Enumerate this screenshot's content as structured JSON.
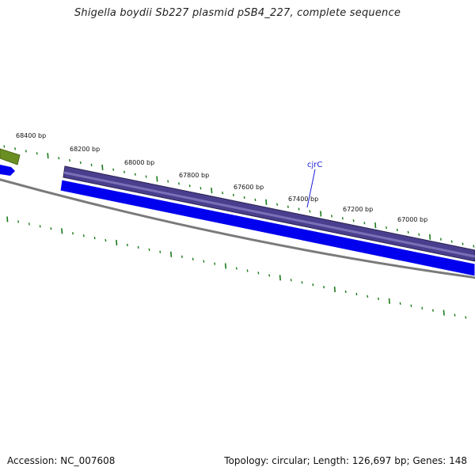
{
  "title": "Shigella boydii Sb227 plasmid pSB4_227, complete sequence",
  "footer": {
    "accession": "Accession: NC_007608",
    "summary": "Topology: circular; Length: 126,697 bp; Genes: 148"
  },
  "map": {
    "tick_labels": [
      "68400 bp",
      "68200 bp",
      "68000 bp",
      "67800 bp",
      "67600 bp",
      "67400 bp",
      "67200 bp",
      "67000 bp"
    ],
    "gene_labels": [
      "cjrC"
    ]
  },
  "colors": {
    "tick": "#1a7a1a",
    "forward_gene_fill": "#4a3f8e",
    "forward_gene_edge": "#2a2250",
    "reverse_gene_fill": "#0000ee",
    "olive_gene": "#6b8e23",
    "backbone": "#7a7a7a",
    "gene_label": "#1a1adc"
  }
}
